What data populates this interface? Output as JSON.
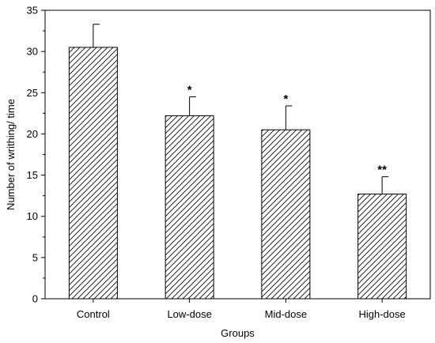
{
  "chart_data": {
    "type": "bar",
    "categories": [
      "Control",
      "Low-dose",
      "Mid-dose",
      "High-dose"
    ],
    "values": [
      30.5,
      22.2,
      20.5,
      12.7
    ],
    "errors": [
      2.8,
      2.3,
      2.9,
      2.1
    ],
    "significance": [
      "",
      "*",
      "*",
      "**"
    ],
    "xlabel": "Groups",
    "ylabel": "Number of writhing/ time",
    "ylim": [
      0,
      35
    ],
    "yticks": [
      0,
      5,
      10,
      15,
      20,
      25,
      30,
      35
    ],
    "grid": false,
    "legend": "none",
    "bar_fill": "hatched diagonal",
    "colors": {
      "bar_stroke": "#000000",
      "hatch": "#000000",
      "background": "#ffffff"
    }
  }
}
